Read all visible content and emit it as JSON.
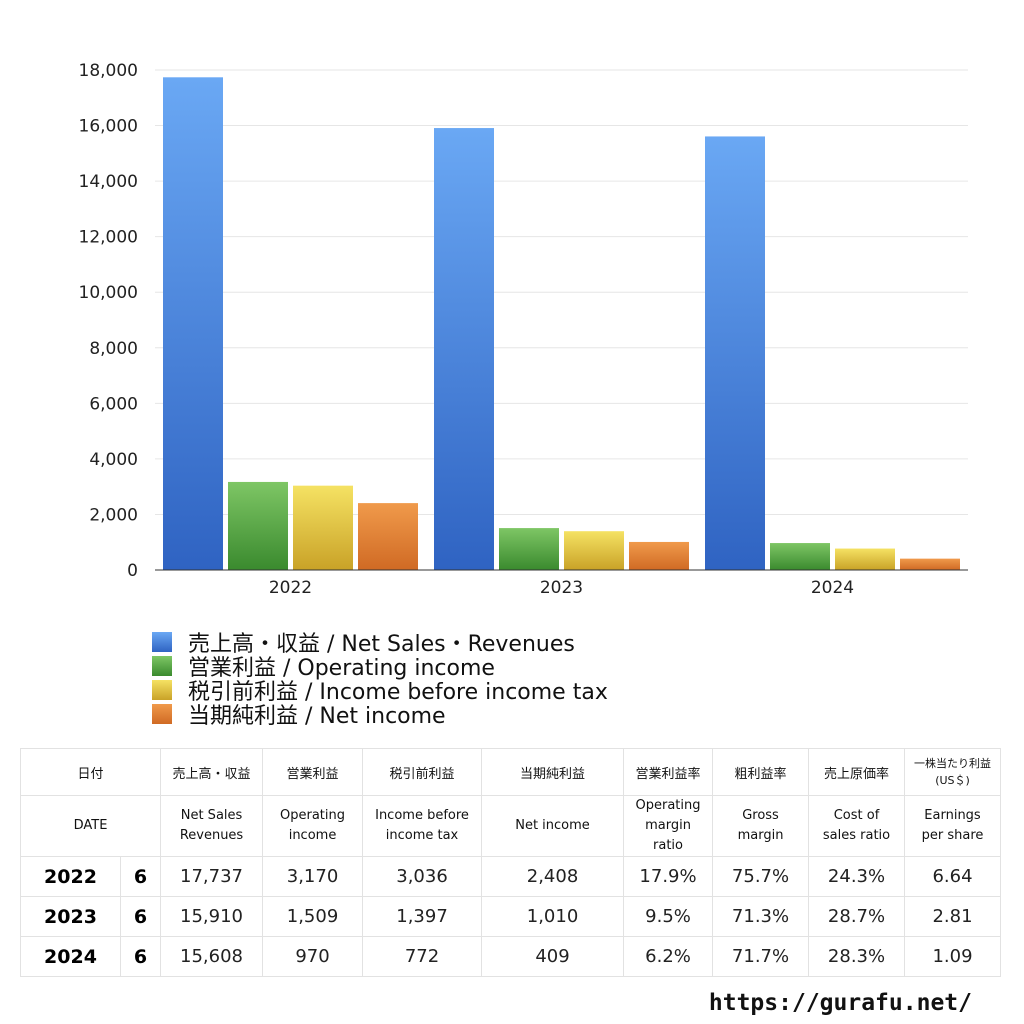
{
  "colors": {
    "net_sales": [
      "#6aa8f4",
      "#2f63c2"
    ],
    "operating_income": [
      "#7ec665",
      "#3a8a2e"
    ],
    "income_before_tax": [
      "#f5e263",
      "#c9a227"
    ],
    "net_income": [
      "#f09a4b",
      "#d06a24"
    ],
    "gridline": "#e6e6e6",
    "axis": "#333333"
  },
  "chart_data": {
    "type": "bar",
    "categories": [
      "2022",
      "2023",
      "2024"
    ],
    "ylim": [
      0,
      18000
    ],
    "yticks": [
      0,
      2000,
      4000,
      6000,
      8000,
      10000,
      12000,
      14000,
      16000,
      18000
    ],
    "ytick_labels": [
      "0",
      "2,000",
      "4,000",
      "6,000",
      "8,000",
      "10,000",
      "12,000",
      "14,000",
      "16,000",
      "18,000"
    ],
    "grid": true,
    "series": [
      {
        "name": "売上高・収益 / Net Sales・Revenues",
        "key": "net_sales",
        "values": [
          17737,
          15910,
          15608
        ]
      },
      {
        "name": "営業利益 / Operating income",
        "key": "operating_income",
        "values": [
          3170,
          1509,
          970
        ]
      },
      {
        "name": "税引前利益 / Income before income tax",
        "key": "income_before_tax",
        "values": [
          3036,
          1397,
          772
        ]
      },
      {
        "name": "当期純利益 / Net income",
        "key": "net_income",
        "values": [
          2408,
          1010,
          409
        ]
      }
    ],
    "legend_position": "bottom-left"
  },
  "table": {
    "header_jp": [
      "日付",
      "売上高・収益",
      "営業利益",
      "税引前利益",
      "当期純利益",
      "営業利益率",
      "粗利益率",
      "売上原価率"
    ],
    "header_jp_eps": [
      "一株当たり利益",
      "(US＄)"
    ],
    "header_en_date": "DATE",
    "header_en": [
      [
        "Net Sales",
        "Revenues"
      ],
      [
        "Operating",
        "income"
      ],
      [
        "Income before",
        "income tax"
      ],
      [
        "Net income"
      ],
      [
        "Operating",
        "margin",
        "ratio"
      ],
      [
        "Gross",
        "margin"
      ],
      [
        "Cost of",
        "sales ratio"
      ],
      [
        "Earnings",
        "per share"
      ]
    ],
    "rows": [
      {
        "year": "2022",
        "month": "6",
        "cells": [
          "17,737",
          "3,170",
          "3,036",
          "2,408",
          "17.9%",
          "75.7%",
          "24.3%",
          "6.64"
        ]
      },
      {
        "year": "2023",
        "month": "6",
        "cells": [
          "15,910",
          "1,509",
          "1,397",
          "1,010",
          "9.5%",
          "71.3%",
          "28.7%",
          "2.81"
        ]
      },
      {
        "year": "2024",
        "month": "6",
        "cells": [
          "15,608",
          "970",
          "772",
          "409",
          "6.2%",
          "71.7%",
          "28.3%",
          "1.09"
        ]
      }
    ]
  },
  "footer": {
    "site": "https://gurafu.net/"
  }
}
